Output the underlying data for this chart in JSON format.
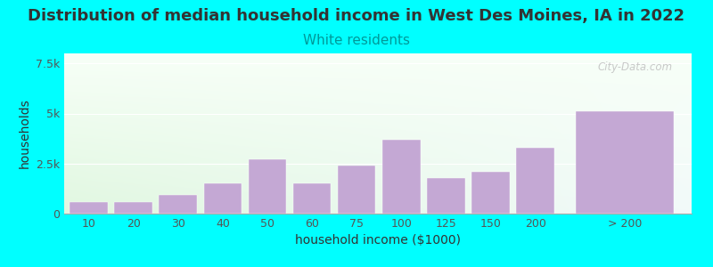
{
  "title": "Distribution of median household income in West Des Moines, IA in 2022",
  "subtitle": "White residents",
  "xlabel": "household income ($1000)",
  "ylabel": "households",
  "background_color": "#00FFFF",
  "bar_color": "#C4A8D4",
  "categories": [
    "10",
    "20",
    "30",
    "40",
    "50",
    "60",
    "75",
    "100",
    "125",
    "150",
    "200",
    "> 200"
  ],
  "values": [
    580,
    580,
    950,
    1500,
    2700,
    1500,
    2400,
    3700,
    1800,
    2100,
    3300,
    5100
  ],
  "bar_widths": [
    0.9,
    0.9,
    0.9,
    0.9,
    0.9,
    0.9,
    0.9,
    0.9,
    0.9,
    0.9,
    0.9,
    0.9
  ],
  "positions": [
    0,
    1,
    2,
    3,
    4,
    5,
    6,
    7,
    8,
    9,
    10,
    12
  ],
  "xlim": [
    -0.55,
    13.5
  ],
  "ylim": [
    0,
    8000
  ],
  "yticks": [
    0,
    2500,
    5000,
    7500
  ],
  "ytick_labels": [
    "0",
    "2.5k",
    "5k",
    "7.5k"
  ],
  "title_fontsize": 13,
  "subtitle_fontsize": 11,
  "axis_label_fontsize": 10,
  "tick_fontsize": 9,
  "watermark_text": "City-Data.com",
  "title_color": "#333333",
  "subtitle_color": "#009999",
  "grid_color": "#ffffff",
  "gradient_top": "#f5fff5",
  "gradient_bottom": "#e8f5e0"
}
